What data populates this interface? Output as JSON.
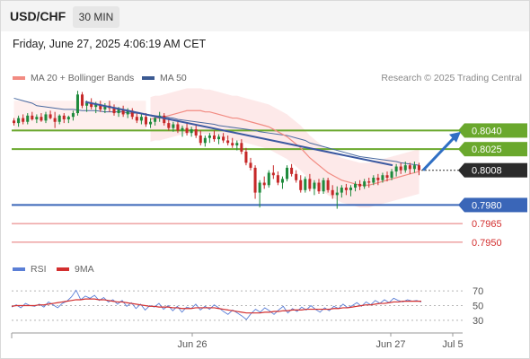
{
  "header": {
    "symbol": "USD/CHF",
    "timeframe": "30 MIN",
    "datetime": "Friday, June 27, 2025 4:06:19 AM CET"
  },
  "legend": {
    "ma20_label": "MA 20 + Bollinger Bands",
    "ma50_label": "MA 50",
    "rsi_label": "RSI",
    "ma9_label": "9MA",
    "credit": "Research © 2025 Trading Central"
  },
  "colors": {
    "ma20": "#f28b82",
    "band": "#fde4e3",
    "ma50": "#4a6aa0",
    "bull": "#1e8a3c",
    "bear": "#c62828",
    "resistance": "#6aa82d",
    "support": "#3a66b8",
    "support_weak": "#e57373",
    "trend": "#3b58a0",
    "arrow": "#2f6fc4",
    "rsi": "#5b7fd6",
    "rsi_ma": "#d32f2f"
  },
  "chart_data": [
    {
      "type": "candlestick",
      "title": "USD/CHF",
      "ylim": [
        0.7942,
        0.8075
      ],
      "x_ticks": [
        "Jun 26",
        "Jun 27",
        "Jul 5"
      ],
      "current_price": "0.8008",
      "levels": [
        {
          "value": 0.804,
          "label": "0.8040",
          "kind": "resistance",
          "boxed": true
        },
        {
          "value": 0.8025,
          "label": "0.8025",
          "kind": "resistance",
          "boxed": true
        },
        {
          "value": 0.798,
          "label": "0.7980",
          "kind": "support",
          "boxed": true
        },
        {
          "value": 0.7965,
          "label": "0.7965",
          "kind": "support_weak",
          "boxed": false
        },
        {
          "value": 0.795,
          "label": "0.7950",
          "kind": "support_weak",
          "boxed": false
        }
      ],
      "trendline": [
        [
          0.0,
          0.8063
        ],
        [
          0.62,
          0.8012
        ]
      ],
      "target_arrow": [
        [
          0.806,
          0.8008
        ],
        [
          0.826,
          0.8036
        ]
      ],
      "candles": [
        [
          0.8048,
          0.805,
          0.8044,
          0.8046
        ],
        [
          0.8046,
          0.8052,
          0.8043,
          0.805
        ],
        [
          0.805,
          0.8053,
          0.8045,
          0.8047
        ],
        [
          0.8047,
          0.8054,
          0.8045,
          0.8052
        ],
        [
          0.8052,
          0.8055,
          0.8048,
          0.8049
        ],
        [
          0.8049,
          0.8053,
          0.8046,
          0.8051
        ],
        [
          0.8051,
          0.8054,
          0.8047,
          0.8048
        ],
        [
          0.8048,
          0.8055,
          0.8046,
          0.8053
        ],
        [
          0.8053,
          0.8056,
          0.8049,
          0.805
        ],
        [
          0.805,
          0.8055,
          0.8042,
          0.8047
        ],
        [
          0.8047,
          0.8053,
          0.8045,
          0.8052
        ],
        [
          0.8052,
          0.8054,
          0.8046,
          0.8049
        ],
        [
          0.8049,
          0.8052,
          0.8046,
          0.8051
        ],
        [
          0.8051,
          0.8056,
          0.8048,
          0.8054
        ],
        [
          0.8054,
          0.8072,
          0.8052,
          0.8069
        ],
        [
          0.8069,
          0.8071,
          0.8058,
          0.806
        ],
        [
          0.806,
          0.8064,
          0.8055,
          0.8062
        ],
        [
          0.8062,
          0.8066,
          0.8057,
          0.8059
        ],
        [
          0.8059,
          0.8063,
          0.8054,
          0.8061
        ],
        [
          0.8061,
          0.8064,
          0.8055,
          0.8057
        ],
        [
          0.8057,
          0.8062,
          0.8054,
          0.806
        ],
        [
          0.806,
          0.8064,
          0.8055,
          0.8058
        ],
        [
          0.8058,
          0.8061,
          0.8052,
          0.8054
        ],
        [
          0.8054,
          0.8059,
          0.8051,
          0.8057
        ],
        [
          0.8057,
          0.806,
          0.8051,
          0.8053
        ],
        [
          0.8053,
          0.8058,
          0.805,
          0.8056
        ],
        [
          0.8056,
          0.8058,
          0.8049,
          0.8051
        ],
        [
          0.8051,
          0.8055,
          0.8046,
          0.8048
        ],
        [
          0.8048,
          0.8053,
          0.8045,
          0.8051
        ],
        [
          0.8051,
          0.8054,
          0.8043,
          0.8045
        ],
        [
          0.8045,
          0.805,
          0.8042,
          0.8047
        ],
        [
          0.8047,
          0.8052,
          0.8044,
          0.805
        ],
        [
          0.805,
          0.8055,
          0.8047,
          0.8052
        ],
        [
          0.8052,
          0.8054,
          0.8044,
          0.8046
        ],
        [
          0.8046,
          0.805,
          0.804,
          0.8042
        ],
        [
          0.8042,
          0.8047,
          0.8039,
          0.8045
        ],
        [
          0.8045,
          0.8048,
          0.8038,
          0.804
        ],
        [
          0.804,
          0.8044,
          0.8035,
          0.8042
        ],
        [
          0.8042,
          0.8046,
          0.8036,
          0.8038
        ],
        [
          0.8038,
          0.8043,
          0.8035,
          0.8041
        ],
        [
          0.8041,
          0.8044,
          0.8034,
          0.8036
        ],
        [
          0.8036,
          0.804,
          0.8028,
          0.803
        ],
        [
          0.803,
          0.8036,
          0.8027,
          0.8034
        ],
        [
          0.8034,
          0.8038,
          0.803,
          0.8036
        ],
        [
          0.8036,
          0.804,
          0.8031,
          0.8033
        ],
        [
          0.8033,
          0.8037,
          0.8029,
          0.8035
        ],
        [
          0.8035,
          0.8038,
          0.803,
          0.8032
        ],
        [
          0.8032,
          0.8036,
          0.8028,
          0.803
        ],
        [
          0.803,
          0.8034,
          0.8026,
          0.8028
        ],
        [
          0.8028,
          0.8032,
          0.8024,
          0.803
        ],
        [
          0.803,
          0.8033,
          0.8021,
          0.8023
        ],
        [
          0.8023,
          0.8026,
          0.8012,
          0.8014
        ],
        [
          0.8014,
          0.8018,
          0.8008,
          0.801
        ],
        [
          0.801,
          0.8012,
          0.7985,
          0.799
        ],
        [
          0.799,
          0.8,
          0.7978,
          0.7998
        ],
        [
          0.7998,
          0.8003,
          0.7993,
          0.7996
        ],
        [
          0.7996,
          0.8008,
          0.7994,
          0.8006
        ],
        [
          0.8006,
          0.8012,
          0.8001,
          0.8004
        ],
        [
          0.8004,
          0.8007,
          0.7996,
          0.7998
        ],
        [
          0.7998,
          0.8003,
          0.7993,
          0.8001
        ],
        [
          0.8001,
          0.8012,
          0.7999,
          0.801
        ],
        [
          0.801,
          0.8013,
          0.8003,
          0.8005
        ],
        [
          0.8005,
          0.8008,
          0.7998,
          0.8
        ],
        [
          0.8,
          0.8004,
          0.799,
          0.7992
        ],
        [
          0.7992,
          0.8003,
          0.799,
          0.8001
        ],
        [
          0.8001,
          0.8005,
          0.7991,
          0.7993
        ],
        [
          0.7993,
          0.8,
          0.7988,
          0.7998
        ],
        [
          0.7998,
          0.8001,
          0.7989,
          0.7991
        ],
        [
          0.7991,
          0.8002,
          0.7989,
          0.8
        ],
        [
          0.8,
          0.8002,
          0.799,
          0.7992
        ],
        [
          0.7992,
          0.7996,
          0.7985,
          0.7988
        ],
        [
          0.7988,
          0.7995,
          0.7977,
          0.799
        ],
        [
          0.799,
          0.7996,
          0.7986,
          0.7994
        ],
        [
          0.7994,
          0.7997,
          0.7988,
          0.7992
        ],
        [
          0.7992,
          0.7996,
          0.7987,
          0.7994
        ],
        [
          0.7994,
          0.7999,
          0.7991,
          0.7997
        ],
        [
          0.7997,
          0.8,
          0.7992,
          0.7995
        ],
        [
          0.7995,
          0.8001,
          0.7993,
          0.7999
        ],
        [
          0.7999,
          0.8002,
          0.7994,
          0.7998
        ],
        [
          0.7998,
          0.8004,
          0.7996,
          0.8002
        ],
        [
          0.8002,
          0.8005,
          0.7996,
          0.8
        ],
        [
          0.8,
          0.8006,
          0.7998,
          0.8004
        ],
        [
          0.8004,
          0.8007,
          0.7999,
          0.8002
        ],
        [
          0.8002,
          0.8009,
          0.8,
          0.8007
        ],
        [
          0.8007,
          0.8013,
          0.8003,
          0.8011
        ],
        [
          0.8011,
          0.8014,
          0.8005,
          0.8008
        ],
        [
          0.8008,
          0.8015,
          0.8006,
          0.8012
        ],
        [
          0.8012,
          0.8014,
          0.8005,
          0.8009
        ],
        [
          0.8009,
          0.8015,
          0.8006,
          0.8012
        ],
        [
          0.8012,
          0.8014,
          0.8004,
          0.8008
        ]
      ],
      "ma20": [
        0.8049,
        0.805,
        0.805,
        0.8051,
        0.8052,
        0.8053,
        0.8054,
        0.8055,
        0.8056,
        0.8056,
        0.8056,
        0.8056,
        0.8055,
        0.8055,
        0.8054,
        0.8053,
        0.8052,
        0.8051,
        0.805,
        0.805,
        0.8049,
        0.8048,
        0.8047,
        0.8046,
        0.8045,
        0.8044,
        0.8043,
        0.8041,
        0.8039,
        0.8037,
        0.8035,
        0.8032,
        0.8029,
        0.8026,
        0.8022,
        0.8018,
        0.8015,
        0.8012,
        0.8009,
        0.8006,
        0.8004,
        0.8002,
        0.8,
        0.7999,
        0.7998,
        0.7997,
        0.7996,
        0.7996,
        0.7996,
        0.7997,
        0.7998,
        0.7999,
        0.8,
        0.8001,
        0.8002,
        0.8003,
        0.8004,
        0.8005,
        0.8006,
        0.8007
      ],
      "ma20_start_index": 30,
      "ma50": [
        0.8066,
        0.8064,
        0.8062,
        0.806,
        0.8059,
        0.8058,
        0.8057,
        0.8057,
        0.8056,
        0.8056,
        0.8056,
        0.8055,
        0.8055,
        0.8055,
        0.8054,
        0.8054,
        0.8053,
        0.8052,
        0.8051,
        0.805,
        0.8049,
        0.8048,
        0.8047,
        0.8046,
        0.8045,
        0.8044,
        0.8043,
        0.8042,
        0.8041,
        0.804,
        0.8039,
        0.8038,
        0.8037,
        0.8036,
        0.8034,
        0.8032,
        0.803,
        0.8028,
        0.8026,
        0.8024,
        0.8022,
        0.8021,
        0.8019,
        0.8018,
        0.8017,
        0.8016,
        0.8015,
        0.8014,
        0.8013,
        0.8012
      ],
      "bands_upper_offset": 0.0018,
      "bands_lower_offset": 0.0018
    },
    {
      "type": "line",
      "title": "RSI",
      "ylim": [
        20,
        80
      ],
      "y_ticks": [
        30,
        50,
        70
      ],
      "series": [
        {
          "name": "RSI",
          "values": [
            48,
            51,
            47,
            53,
            50,
            49,
            52,
            48,
            55,
            51,
            47,
            53,
            56,
            62,
            71,
            58,
            63,
            60,
            64,
            57,
            61,
            55,
            58,
            52,
            57,
            49,
            54,
            46,
            52,
            44,
            50,
            48,
            53,
            45,
            50,
            43,
            49,
            41,
            48,
            46,
            52,
            44,
            49,
            45,
            51,
            47,
            42,
            38,
            44,
            40,
            36,
            31,
            39,
            45,
            41,
            47,
            43,
            38,
            44,
            49,
            40,
            46,
            42,
            48,
            44,
            50,
            45,
            41,
            47,
            43,
            49,
            46,
            52,
            47,
            50,
            54,
            49,
            55,
            51,
            57,
            53,
            58,
            54,
            60,
            57,
            55,
            58,
            56,
            57,
            55
          ]
        },
        {
          "name": "9MA",
          "values": [
            49,
            50,
            50,
            50,
            50,
            50,
            51,
            51,
            52,
            53,
            54,
            55,
            56,
            57,
            58,
            58,
            59,
            59,
            59,
            58,
            58,
            57,
            56,
            55,
            55,
            54,
            53,
            52,
            51,
            50,
            49,
            49,
            48,
            48,
            48,
            47,
            47,
            46,
            46,
            46,
            47,
            47,
            47,
            47,
            47,
            46,
            45,
            44,
            43,
            42,
            41,
            40,
            40,
            40,
            40,
            41,
            41,
            42,
            42,
            43,
            43,
            44,
            44,
            44,
            45,
            45,
            45,
            45,
            45,
            45,
            46,
            46,
            47,
            47,
            48,
            49,
            50,
            51,
            51,
            52,
            53,
            53,
            54,
            55,
            55,
            56,
            56,
            56,
            56,
            56
          ]
        }
      ]
    }
  ]
}
